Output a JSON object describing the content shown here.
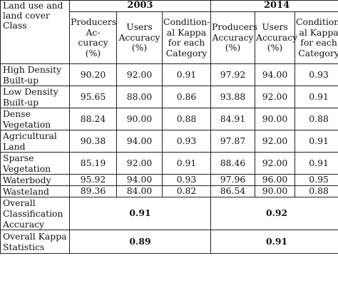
{
  "table": {
    "corner": [
      "Land use and",
      "land cover Class"
    ],
    "years": [
      "2003",
      "2014"
    ],
    "subheads": [
      [
        "Producers Ac-",
        "curacy",
        "(%)"
      ],
      [
        "Users",
        "Accuracy (%)"
      ],
      [
        "Condition-",
        "al Kappa",
        "for each",
        "Category"
      ],
      [
        "Producers",
        "Accuracy",
        "(%)"
      ],
      [
        "Users",
        "Accuracy",
        "(%)"
      ],
      [
        "Condition-",
        "al Kappa",
        "for each",
        "Category"
      ]
    ],
    "rows": [
      {
        "label": [
          "High Density",
          "Built-up"
        ],
        "values": [
          "90.20",
          "92.00",
          "0.91",
          "97.92",
          "94.00",
          "0.93"
        ]
      },
      {
        "label": [
          "Low Density",
          "Built-up"
        ],
        "values": [
          "95.65",
          "88.00",
          "0.86",
          "93.88",
          "92.00",
          "0.91"
        ]
      },
      {
        "label": [
          "Dense",
          "Vegetation"
        ],
        "values": [
          "88.24",
          "90.00",
          "0.88",
          "84.91",
          "90.00",
          "0.88"
        ]
      },
      {
        "label": [
          "Agricultural",
          "Land"
        ],
        "values": [
          "90.38",
          "94.00",
          "0.93",
          "97.87",
          "92.00",
          "0.91"
        ]
      },
      {
        "label": [
          "Sparse",
          "Vegetation"
        ],
        "values": [
          "85.19",
          "92.00",
          "0.91",
          "88.46",
          "92.00",
          "0.91"
        ]
      },
      {
        "label": [
          "Waterbody"
        ],
        "values": [
          "95.92",
          "94.00",
          "0.93",
          "97.96",
          "96.00",
          "0.95"
        ]
      },
      {
        "label": [
          "Wasteland"
        ],
        "values": [
          "89.36",
          "84.00",
          "0.82",
          "86.54",
          "90.00",
          "0.88"
        ]
      }
    ],
    "overall_accuracy": {
      "label": [
        "Overall",
        "Classification",
        "Accuracy"
      ],
      "v2003": "0.91",
      "v2014": "0.92"
    },
    "overall_kappa": {
      "label": [
        "Overall Kappa",
        "Statistics"
      ],
      "v2003": "0.89",
      "v2014": "0.91"
    }
  }
}
